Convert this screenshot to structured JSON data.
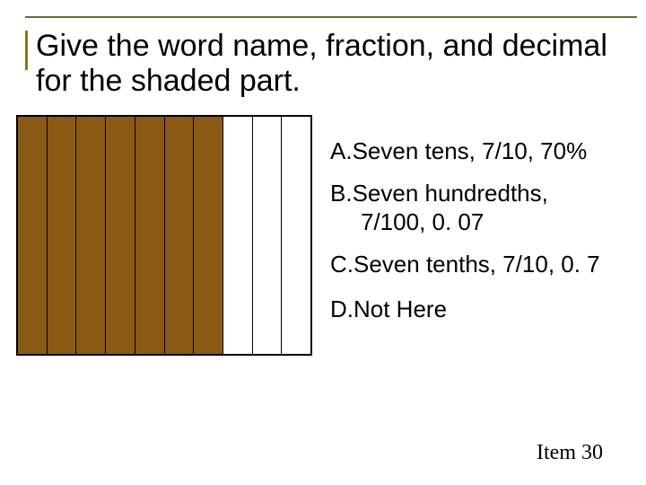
{
  "corner_note": "",
  "title": "Give the word name, fraction, and decimal for the shaded part.",
  "bars": {
    "total": 10,
    "shaded": 7,
    "shaded_color": "#8a5a14",
    "empty_color": "#ffffff",
    "border_color": "#000000"
  },
  "answers": {
    "a": {
      "label": "A.",
      "text": "Seven tens, 7/10, 70%"
    },
    "b": {
      "label": "B.",
      "text_line1": "Seven hundredths,",
      "text_line2": "7/100, 0. 07"
    },
    "c": {
      "label": "C.",
      "text": "Seven tenths, 7/10, 0. 7"
    },
    "d": {
      "label": "D.",
      "text": "Not Here"
    }
  },
  "item_number": "Item 30",
  "colors": {
    "rule": "#6b6b3a",
    "accent": "#8a7a1a",
    "background": "#ffffff",
    "text": "#000000"
  },
  "typography": {
    "title_fontsize": 34,
    "answer_fontsize": 26,
    "item_fontsize": 24,
    "item_fontfamily": "Times New Roman"
  }
}
